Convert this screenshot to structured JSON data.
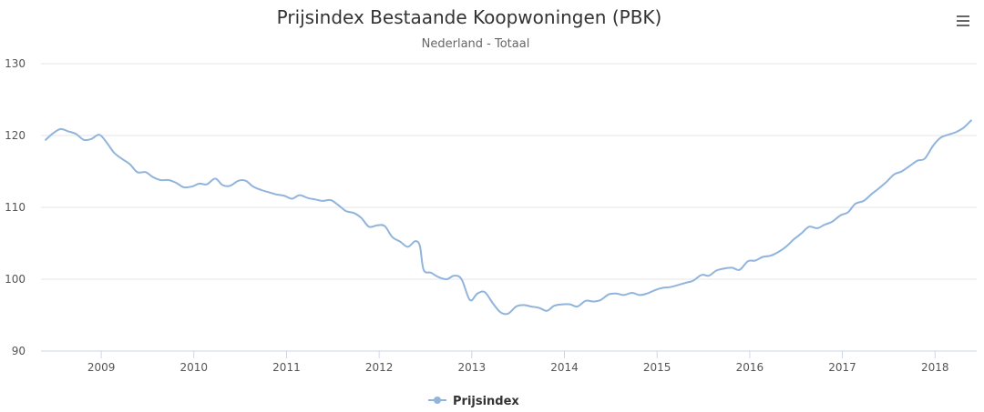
{
  "chart_data": {
    "type": "line",
    "title": "Prijsindex Bestaande Koopwoningen (PBK)",
    "subtitle": "Nederland - Totaal",
    "xlabel": "",
    "ylabel": "",
    "xlim": [
      2008.35,
      2018.45
    ],
    "ylim": [
      90,
      130
    ],
    "y_ticks": [
      90,
      100,
      110,
      120,
      130
    ],
    "x_ticks": [
      "2009",
      "2010",
      "2011",
      "2012",
      "2013",
      "2014",
      "2015",
      "2016",
      "2017",
      "2018"
    ],
    "grid": true,
    "legend_position": "bottom-center",
    "colors": {
      "series": "#90b4dc",
      "grid": "#e6e6e6",
      "axis": "#ccd6eb"
    },
    "series": [
      {
        "name": "Prijsindex",
        "x": [
          2008.4,
          2008.48,
          2008.56,
          2008.64,
          2008.73,
          2008.81,
          2008.89,
          2008.98,
          2009.06,
          2009.14,
          2009.23,
          2009.31,
          2009.39,
          2009.48,
          2009.56,
          2009.64,
          2009.73,
          2009.81,
          2009.89,
          2009.98,
          2010.06,
          2010.14,
          2010.23,
          2010.31,
          2010.39,
          2010.48,
          2010.56,
          2010.64,
          2010.73,
          2010.81,
          2010.89,
          2010.98,
          2011.06,
          2011.14,
          2011.23,
          2011.31,
          2011.39,
          2011.48,
          2011.56,
          2011.64,
          2011.73,
          2011.81,
          2011.89,
          2011.98,
          2012.06,
          2012.14,
          2012.23,
          2012.31,
          2012.39,
          2012.44,
          2012.48,
          2012.56,
          2012.64,
          2012.73,
          2012.81,
          2012.89,
          2012.98,
          2013.06,
          2013.14,
          2013.23,
          2013.31,
          2013.39,
          2013.48,
          2013.56,
          2013.64,
          2013.73,
          2013.81,
          2013.89,
          2013.98,
          2014.06,
          2014.14,
          2014.23,
          2014.31,
          2014.39,
          2014.48,
          2014.56,
          2014.64,
          2014.73,
          2014.81,
          2014.89,
          2014.98,
          2015.06,
          2015.14,
          2015.23,
          2015.31,
          2015.39,
          2015.48,
          2015.56,
          2015.64,
          2015.73,
          2015.81,
          2015.89,
          2015.98,
          2016.06,
          2016.14,
          2016.23,
          2016.31,
          2016.39,
          2016.48,
          2016.56,
          2016.64,
          2016.73,
          2016.81,
          2016.89,
          2016.98,
          2017.06,
          2017.14,
          2017.23,
          2017.31,
          2017.39,
          2017.48,
          2017.56,
          2017.64,
          2017.73,
          2017.81,
          2017.89,
          2017.98,
          2018.06,
          2018.14,
          2018.23,
          2018.31,
          2018.39
        ],
        "values": [
          119.4,
          120.3,
          120.9,
          120.6,
          120.2,
          119.4,
          119.5,
          120.1,
          119.0,
          117.6,
          116.7,
          116.0,
          114.9,
          114.9,
          114.2,
          113.8,
          113.8,
          113.4,
          112.8,
          112.9,
          113.3,
          113.2,
          114.0,
          113.1,
          113.0,
          113.7,
          113.7,
          112.9,
          112.4,
          112.1,
          111.8,
          111.6,
          111.2,
          111.7,
          111.3,
          111.1,
          110.9,
          111.0,
          110.3,
          109.5,
          109.2,
          108.5,
          107.3,
          107.5,
          107.4,
          105.9,
          105.2,
          104.5,
          105.3,
          104.6,
          101.3,
          100.9,
          100.3,
          100.0,
          100.5,
          100.0,
          97.1,
          98.0,
          98.2,
          96.6,
          95.4,
          95.2,
          96.2,
          96.4,
          96.2,
          96.0,
          95.6,
          96.3,
          96.5,
          96.5,
          96.2,
          97.0,
          96.9,
          97.1,
          97.9,
          98.0,
          97.8,
          98.1,
          97.8,
          98.0,
          98.5,
          98.8,
          98.9,
          99.2,
          99.5,
          99.8,
          100.6,
          100.5,
          101.2,
          101.5,
          101.6,
          101.3,
          102.5,
          102.6,
          103.1,
          103.3,
          103.8,
          104.5,
          105.6,
          106.4,
          107.3,
          107.1,
          107.6,
          108.0,
          108.9,
          109.3,
          110.5,
          110.9,
          111.8,
          112.6,
          113.6,
          114.6,
          115.0,
          115.8,
          116.5,
          116.8,
          118.6,
          119.7,
          120.1,
          120.5,
          121.1,
          122.1
        ]
      }
    ]
  }
}
